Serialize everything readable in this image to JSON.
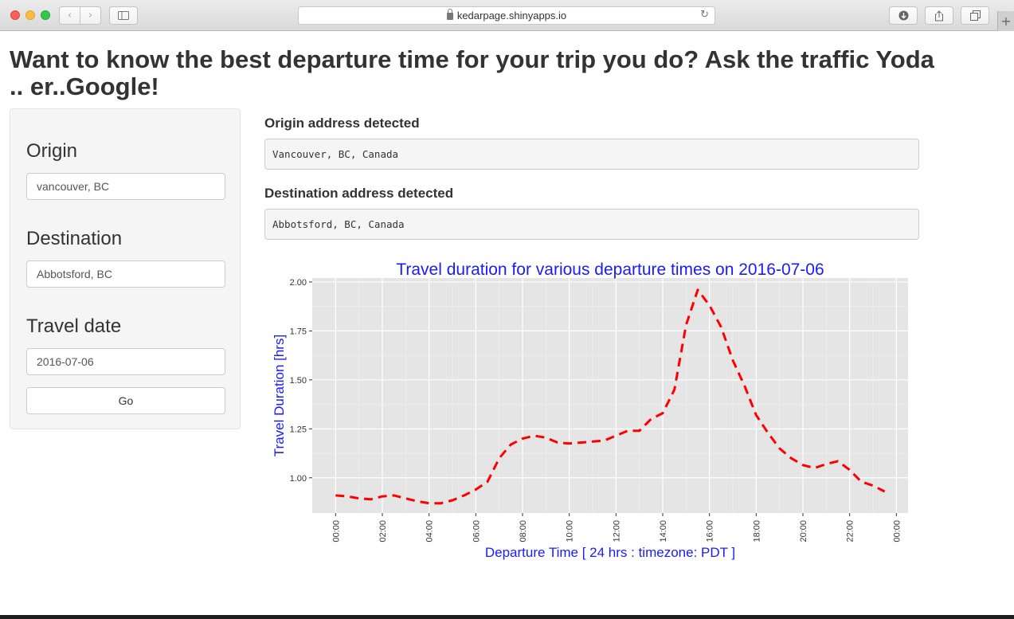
{
  "browser": {
    "url": "kedarpage.shinyapps.io",
    "back_icon": "chevron-left",
    "forward_icon": "chevron-right",
    "sidebar_icon": "sidebar",
    "reload_icon": "reload",
    "download_icon": "download",
    "share_icon": "share",
    "tabs_icon": "tabs",
    "new_tab_label": "+"
  },
  "page": {
    "title": "Want to know the best departure time for your trip you do? Ask the traffic Yoda .. er..Google!"
  },
  "sidebar": {
    "origin_label": "Origin",
    "origin_value": "vancouver, BC",
    "destination_label": "Destination",
    "destination_value": "Abbotsford, BC",
    "date_label": "Travel date",
    "date_value": "2016-07-06",
    "go_label": "Go"
  },
  "output": {
    "origin_label": "Origin address detected",
    "origin_value": "Vancouver, BC, Canada",
    "destination_label": "Destination address detected",
    "destination_value": "Abbotsford, BC, Canada"
  },
  "chart_data": {
    "type": "line",
    "title": "Travel duration for various departure times on 2016-07-06",
    "xlabel": "Departure Time [ 24 hrs : timezone: PDT ]",
    "ylabel": "Travel Duration [hrs]",
    "xlim": [
      -1,
      24.5
    ],
    "ylim": [
      0.82,
      2.02
    ],
    "xticks": [
      0,
      2,
      4,
      6,
      8,
      10,
      12,
      14,
      16,
      18,
      20,
      22,
      24
    ],
    "xtick_labels": [
      "00:00",
      "02:00",
      "04:00",
      "06:00",
      "08:00",
      "10:00",
      "12:00",
      "14:00",
      "16:00",
      "18:00",
      "20:00",
      "22:00",
      "00:00"
    ],
    "yticks": [
      1.0,
      1.25,
      1.5,
      1.75,
      2.0
    ],
    "ytick_labels": [
      "1.00",
      "1.25",
      "1.50",
      "1.75",
      "2.00"
    ],
    "grid": true,
    "line_style": "dashed",
    "colors": {
      "line": "#ff0000",
      "text": "#1a1aff",
      "panel": "#e5e5e5",
      "grid": "#ffffff"
    },
    "series": [
      {
        "x": [
          0,
          0.5,
          1,
          1.5,
          2,
          2.5,
          3,
          3.5,
          4,
          4.5,
          5,
          5.5,
          6,
          6.5,
          7,
          7.5,
          8,
          8.5,
          9,
          9.5,
          10,
          10.5,
          11,
          11.5,
          12,
          12.5,
          13,
          13.5,
          14,
          14.5,
          15,
          15.5,
          16,
          16.5,
          17,
          17.5,
          18,
          18.5,
          19,
          19.5,
          20,
          20.5,
          21,
          21.5,
          22,
          22.5,
          23,
          23.5
        ],
        "y": [
          0.91,
          0.905,
          0.895,
          0.89,
          0.905,
          0.91,
          0.895,
          0.88,
          0.87,
          0.87,
          0.885,
          0.91,
          0.94,
          0.98,
          1.1,
          1.17,
          1.2,
          1.215,
          1.205,
          1.18,
          1.175,
          1.18,
          1.185,
          1.19,
          1.215,
          1.24,
          1.24,
          1.3,
          1.33,
          1.45,
          1.78,
          1.96,
          1.88,
          1.77,
          1.6,
          1.47,
          1.32,
          1.23,
          1.15,
          1.1,
          1.065,
          1.05,
          1.07,
          1.085,
          1.04,
          0.98,
          0.96,
          0.93
        ]
      }
    ]
  }
}
